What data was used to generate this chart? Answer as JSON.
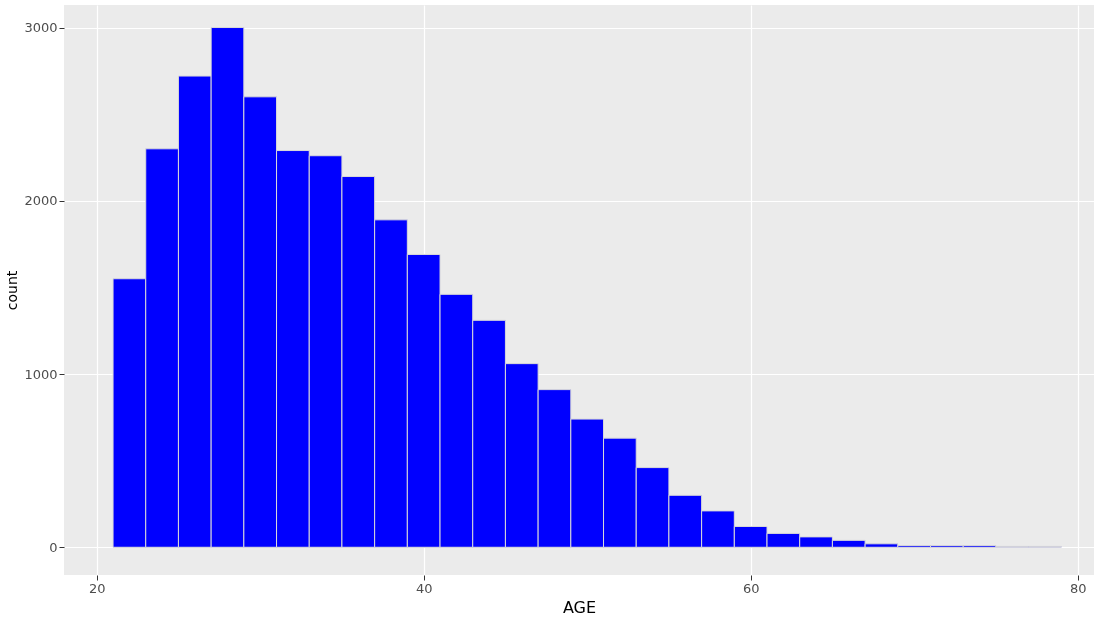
{
  "chart_data": {
    "type": "histogram",
    "xlabel": "AGE",
    "ylabel": "count",
    "bins": [
      21,
      23,
      25,
      27,
      29,
      31,
      33,
      35,
      37,
      39,
      41,
      43,
      45,
      47,
      49,
      51,
      53,
      55,
      57,
      59,
      61,
      63,
      65,
      67,
      69,
      71,
      73,
      75,
      77,
      79
    ],
    "values": [
      1550,
      2300,
      2720,
      3000,
      2600,
      2290,
      2260,
      2140,
      1890,
      1690,
      1460,
      1310,
      1060,
      910,
      740,
      630,
      460,
      300,
      210,
      120,
      80,
      60,
      40,
      20,
      10,
      10,
      10,
      5,
      5
    ],
    "color": "#0000ff",
    "xlim": [
      18,
      81
    ],
    "ylim": [
      -160,
      3130
    ],
    "xticks": [
      20,
      40,
      60,
      80
    ],
    "yticks": [
      0,
      1000,
      2000,
      3000
    ],
    "grid": true
  }
}
